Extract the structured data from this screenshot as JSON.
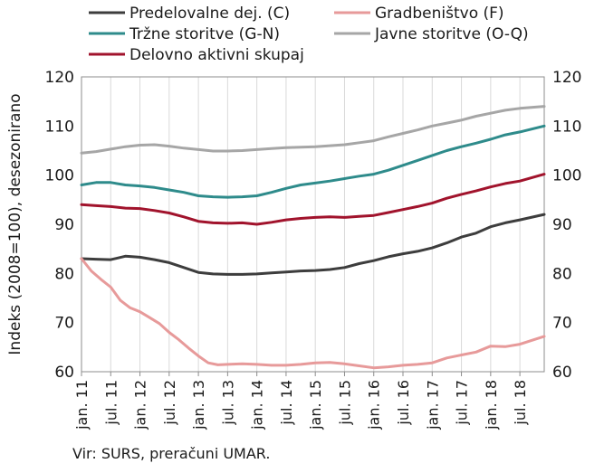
{
  "chart_data": {
    "type": "line",
    "xlabel": "",
    "ylabel": "Indeks (2008=100), desezonirano",
    "ylim": [
      60,
      120
    ],
    "yticks": [
      60,
      70,
      80,
      90,
      100,
      110,
      120
    ],
    "x_start": "2011-01",
    "x_end": "2018-12",
    "x_tick_labels": [
      "jan. 11",
      "jul. 11",
      "jan. 12",
      "jul. 12",
      "jan. 13",
      "jul. 13",
      "jan. 14",
      "jul. 14",
      "jan. 15",
      "jul. 15",
      "jan. 16",
      "jul. 16",
      "jan. 17",
      "jul. 17",
      "jan. 18",
      "jul. 18"
    ],
    "grid": "vertical",
    "legend_position": "top",
    "source_note": "Vir: SURS, preračuni UMAR.",
    "series": [
      {
        "name": "Predelovalne dej. (C)",
        "color": "#3d3d3d",
        "points": [
          [
            "2011-01",
            83.0
          ],
          [
            "2011-04",
            82.9
          ],
          [
            "2011-07",
            82.8
          ],
          [
            "2011-10",
            83.5
          ],
          [
            "2012-01",
            83.3
          ],
          [
            "2012-04",
            82.8
          ],
          [
            "2012-07",
            82.2
          ],
          [
            "2012-10",
            81.2
          ],
          [
            "2013-01",
            80.2
          ],
          [
            "2013-04",
            79.9
          ],
          [
            "2013-07",
            79.8
          ],
          [
            "2013-10",
            79.8
          ],
          [
            "2014-01",
            79.9
          ],
          [
            "2014-04",
            80.1
          ],
          [
            "2014-07",
            80.3
          ],
          [
            "2014-10",
            80.5
          ],
          [
            "2015-01",
            80.6
          ],
          [
            "2015-04",
            80.8
          ],
          [
            "2015-07",
            81.2
          ],
          [
            "2015-10",
            82.0
          ],
          [
            "2016-01",
            82.6
          ],
          [
            "2016-04",
            83.4
          ],
          [
            "2016-07",
            84.0
          ],
          [
            "2016-10",
            84.5
          ],
          [
            "2017-01",
            85.2
          ],
          [
            "2017-04",
            86.2
          ],
          [
            "2017-07",
            87.4
          ],
          [
            "2017-10",
            88.2
          ],
          [
            "2018-01",
            89.5
          ],
          [
            "2018-04",
            90.3
          ],
          [
            "2018-07",
            90.9
          ],
          [
            "2018-12",
            92.0
          ]
        ]
      },
      {
        "name": "Tržne storitve (G-N)",
        "color": "#2e8b8b",
        "points": [
          [
            "2011-01",
            98.0
          ],
          [
            "2011-04",
            98.5
          ],
          [
            "2011-07",
            98.5
          ],
          [
            "2011-10",
            98.0
          ],
          [
            "2012-01",
            97.8
          ],
          [
            "2012-04",
            97.5
          ],
          [
            "2012-07",
            97.0
          ],
          [
            "2012-10",
            96.5
          ],
          [
            "2013-01",
            95.8
          ],
          [
            "2013-04",
            95.6
          ],
          [
            "2013-07",
            95.5
          ],
          [
            "2013-10",
            95.6
          ],
          [
            "2014-01",
            95.8
          ],
          [
            "2014-04",
            96.5
          ],
          [
            "2014-07",
            97.3
          ],
          [
            "2014-10",
            98.0
          ],
          [
            "2015-01",
            98.4
          ],
          [
            "2015-04",
            98.8
          ],
          [
            "2015-07",
            99.3
          ],
          [
            "2015-10",
            99.8
          ],
          [
            "2016-01",
            100.2
          ],
          [
            "2016-04",
            101.0
          ],
          [
            "2016-07",
            102.0
          ],
          [
            "2016-10",
            103.0
          ],
          [
            "2017-01",
            104.0
          ],
          [
            "2017-04",
            105.0
          ],
          [
            "2017-07",
            105.8
          ],
          [
            "2017-10",
            106.5
          ],
          [
            "2018-01",
            107.3
          ],
          [
            "2018-04",
            108.2
          ],
          [
            "2018-07",
            108.8
          ],
          [
            "2018-12",
            110.0
          ]
        ]
      },
      {
        "name": "Delovno aktivni skupaj",
        "color": "#a1132c",
        "points": [
          [
            "2011-01",
            94.0
          ],
          [
            "2011-04",
            93.8
          ],
          [
            "2011-07",
            93.6
          ],
          [
            "2011-10",
            93.3
          ],
          [
            "2012-01",
            93.2
          ],
          [
            "2012-04",
            92.8
          ],
          [
            "2012-07",
            92.3
          ],
          [
            "2012-10",
            91.5
          ],
          [
            "2013-01",
            90.6
          ],
          [
            "2013-04",
            90.3
          ],
          [
            "2013-07",
            90.2
          ],
          [
            "2013-10",
            90.3
          ],
          [
            "2014-01",
            90.0
          ],
          [
            "2014-04",
            90.4
          ],
          [
            "2014-07",
            90.9
          ],
          [
            "2014-10",
            91.2
          ],
          [
            "2015-01",
            91.4
          ],
          [
            "2015-04",
            91.5
          ],
          [
            "2015-07",
            91.4
          ],
          [
            "2015-10",
            91.6
          ],
          [
            "2016-01",
            91.8
          ],
          [
            "2016-04",
            92.4
          ],
          [
            "2016-07",
            93.0
          ],
          [
            "2016-10",
            93.6
          ],
          [
            "2017-01",
            94.3
          ],
          [
            "2017-04",
            95.3
          ],
          [
            "2017-07",
            96.1
          ],
          [
            "2017-10",
            96.8
          ],
          [
            "2018-01",
            97.6
          ],
          [
            "2018-04",
            98.3
          ],
          [
            "2018-07",
            98.8
          ],
          [
            "2018-12",
            100.2
          ]
        ]
      },
      {
        "name": "Gradbeništvo (F)",
        "color": "#e79a9a",
        "points": [
          [
            "2011-01",
            83.0
          ],
          [
            "2011-03",
            80.5
          ],
          [
            "2011-05",
            78.8
          ],
          [
            "2011-07",
            77.2
          ],
          [
            "2011-09",
            74.5
          ],
          [
            "2011-11",
            73.0
          ],
          [
            "2012-01",
            72.2
          ],
          [
            "2012-03",
            71.0
          ],
          [
            "2012-05",
            69.8
          ],
          [
            "2012-07",
            68.0
          ],
          [
            "2012-09",
            66.5
          ],
          [
            "2012-11",
            64.8
          ],
          [
            "2013-01",
            63.2
          ],
          [
            "2013-03",
            61.8
          ],
          [
            "2013-05",
            61.4
          ],
          [
            "2013-07",
            61.5
          ],
          [
            "2013-10",
            61.6
          ],
          [
            "2014-01",
            61.5
          ],
          [
            "2014-04",
            61.3
          ],
          [
            "2014-07",
            61.3
          ],
          [
            "2014-10",
            61.5
          ],
          [
            "2015-01",
            61.8
          ],
          [
            "2015-04",
            61.9
          ],
          [
            "2015-07",
            61.6
          ],
          [
            "2015-10",
            61.2
          ],
          [
            "2016-01",
            60.8
          ],
          [
            "2016-04",
            61.0
          ],
          [
            "2016-07",
            61.3
          ],
          [
            "2016-10",
            61.5
          ],
          [
            "2017-01",
            61.8
          ],
          [
            "2017-04",
            62.8
          ],
          [
            "2017-07",
            63.4
          ],
          [
            "2017-10",
            64.0
          ],
          [
            "2018-01",
            65.2
          ],
          [
            "2018-04",
            65.1
          ],
          [
            "2018-07",
            65.6
          ],
          [
            "2018-12",
            67.2
          ]
        ]
      },
      {
        "name": "Javne storitve (O-Q)",
        "color": "#a6a6a6",
        "points": [
          [
            "2011-01",
            104.5
          ],
          [
            "2011-04",
            104.8
          ],
          [
            "2011-07",
            105.3
          ],
          [
            "2011-10",
            105.8
          ],
          [
            "2012-01",
            106.1
          ],
          [
            "2012-04",
            106.2
          ],
          [
            "2012-07",
            105.9
          ],
          [
            "2012-10",
            105.5
          ],
          [
            "2013-01",
            105.2
          ],
          [
            "2013-04",
            104.9
          ],
          [
            "2013-07",
            104.9
          ],
          [
            "2013-10",
            105.0
          ],
          [
            "2014-01",
            105.2
          ],
          [
            "2014-04",
            105.4
          ],
          [
            "2014-07",
            105.6
          ],
          [
            "2014-10",
            105.7
          ],
          [
            "2015-01",
            105.8
          ],
          [
            "2015-04",
            106.0
          ],
          [
            "2015-07",
            106.2
          ],
          [
            "2015-10",
            106.6
          ],
          [
            "2016-01",
            107.0
          ],
          [
            "2016-04",
            107.8
          ],
          [
            "2016-07",
            108.5
          ],
          [
            "2016-10",
            109.2
          ],
          [
            "2017-01",
            110.0
          ],
          [
            "2017-04",
            110.6
          ],
          [
            "2017-07",
            111.2
          ],
          [
            "2017-10",
            112.0
          ],
          [
            "2018-01",
            112.6
          ],
          [
            "2018-04",
            113.2
          ],
          [
            "2018-07",
            113.6
          ],
          [
            "2018-12",
            114.0
          ]
        ]
      }
    ],
    "legend": [
      {
        "label": "Predelovalne dej. (C)",
        "color": "#3d3d3d"
      },
      {
        "label": "Gradbeništvo (F)",
        "color": "#e79a9a"
      },
      {
        "label": "Tržne storitve (G-N)",
        "color": "#2e8b8b"
      },
      {
        "label": "Javne storitve (O-Q)",
        "color": "#a6a6a6"
      },
      {
        "label": "Delovno aktivni skupaj",
        "color": "#a1132c"
      }
    ]
  }
}
